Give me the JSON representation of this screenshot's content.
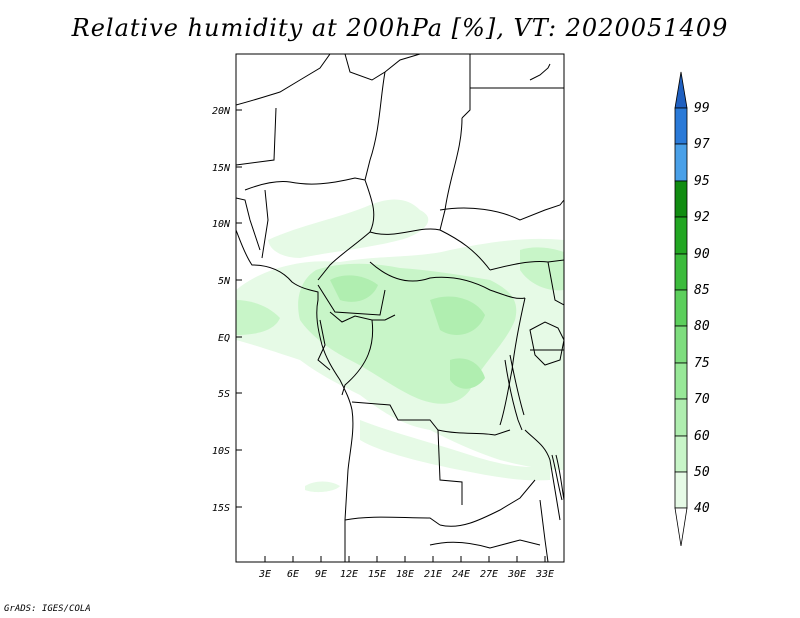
{
  "title": "Relative humidity at 200hPa [%], VT: 2020051409",
  "footer": "GrADS: IGES/COLA",
  "map": {
    "lat_labels": [
      "20N",
      "15N",
      "10N",
      "5N",
      "EQ",
      "5S",
      "10S",
      "15S"
    ],
    "lon_labels": [
      "3E",
      "6E",
      "9E",
      "12E",
      "15E",
      "18E",
      "21E",
      "24E",
      "27E",
      "30E",
      "33E"
    ]
  },
  "colorbar": {
    "labels": [
      "40",
      "50",
      "60",
      "70",
      "75",
      "80",
      "85",
      "90",
      "92",
      "95",
      "97",
      "99"
    ],
    "colors": [
      "#ffffff",
      "#e6fae6",
      "#c8f5c8",
      "#b0eeb0",
      "#98e898",
      "#7edd7e",
      "#5ccf5c",
      "#3cbb3c",
      "#22a622",
      "#118c11",
      "#4aa0e8",
      "#2a7ad8",
      "#2060c0"
    ]
  },
  "colors": {
    "land_border": "#000000",
    "humid_light": "#e6fae6",
    "humid_mid": "#c8f5c8",
    "humid_dark": "#b0eeb0"
  }
}
